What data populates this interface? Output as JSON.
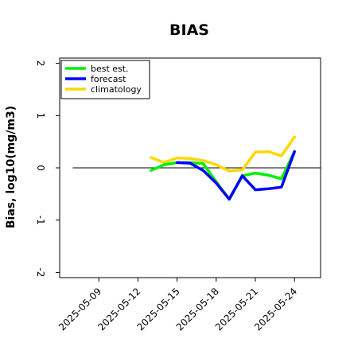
{
  "chart_data": {
    "type": "line",
    "title": "BIAS",
    "xlabel": "",
    "ylabel": "Bias, log10(mg/m3)",
    "xlim": [
      "2025-05-06",
      "2025-05-26"
    ],
    "ylim": [
      -2.1,
      2.1
    ],
    "yticks": [
      2,
      1,
      0,
      -1,
      -2
    ],
    "xticks": [
      "2025-05-09",
      "2025-05-12",
      "2025-05-15",
      "2025-05-18",
      "2025-05-21",
      "2025-05-24"
    ],
    "highlight_xtick": "2025-05-15",
    "reference_line": 0,
    "grid": false,
    "legend": {
      "location": "top-left"
    },
    "series": [
      {
        "name": "climatology",
        "color": "#ffd700",
        "x": [
          "2025-05-13",
          "2025-05-14",
          "2025-05-15",
          "2025-05-16",
          "2025-05-17",
          "2025-05-18",
          "2025-05-19",
          "2025-05-20",
          "2025-05-21",
          "2025-05-22",
          "2025-05-23",
          "2025-05-24"
        ],
        "y": [
          0.2,
          0.1,
          0.19,
          0.18,
          0.14,
          0.06,
          -0.06,
          -0.04,
          0.3,
          0.31,
          0.23,
          0.59
        ]
      },
      {
        "name": "best est.",
        "color": "#00ee00",
        "x": [
          "2025-05-13",
          "2025-05-14",
          "2025-05-15",
          "2025-05-16",
          "2025-05-17",
          "2025-05-18",
          "2025-05-19",
          "2025-05-20",
          "2025-05-21",
          "2025-05-22",
          "2025-05-23",
          "2025-05-24"
        ],
        "y": [
          -0.05,
          0.06,
          0.1,
          0.1,
          0.08,
          -0.27,
          -0.6,
          -0.15,
          -0.1,
          -0.14,
          -0.21,
          0.31
        ]
      },
      {
        "name": "forecast",
        "color": "#0000ff",
        "x": [
          "2025-05-15",
          "2025-05-16",
          "2025-05-17",
          "2025-05-18",
          "2025-05-19",
          "2025-05-20",
          "2025-05-21",
          "2025-05-22",
          "2025-05-23",
          "2025-05-24"
        ],
        "y": [
          0.1,
          0.09,
          -0.05,
          -0.29,
          -0.6,
          -0.15,
          -0.42,
          -0.4,
          -0.37,
          0.31
        ]
      }
    ]
  },
  "legend_order": [
    "best est.",
    "forecast",
    "climatology"
  ]
}
